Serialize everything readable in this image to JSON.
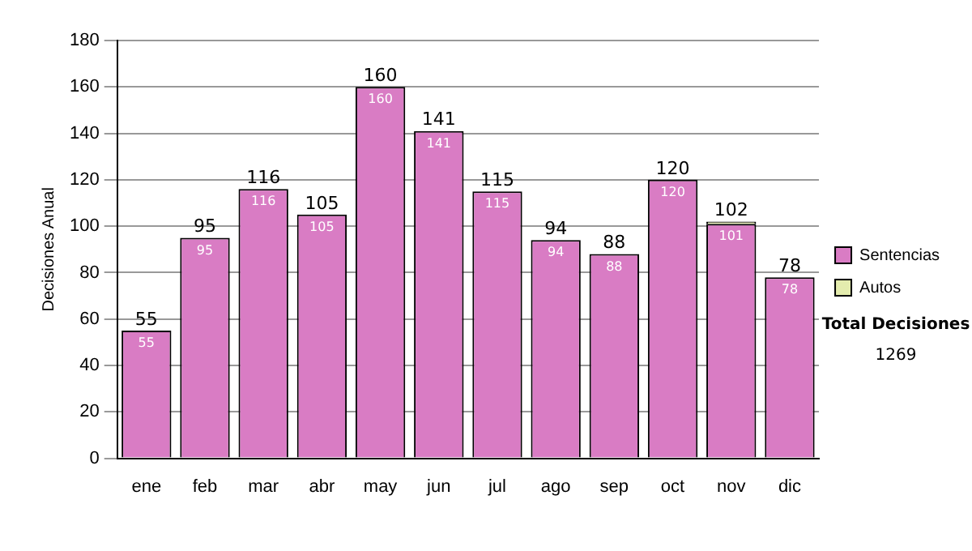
{
  "chart_data": {
    "type": "bar",
    "ylabel": "Decisiones Anual",
    "categories": [
      "ene",
      "feb",
      "mar",
      "abr",
      "may",
      "jun",
      "jul",
      "ago",
      "sep",
      "oct",
      "nov",
      "dic"
    ],
    "series": [
      {
        "name": "Sentencias",
        "color": "#d97cc4",
        "values": [
          55,
          95,
          116,
          105,
          160,
          141,
          115,
          94,
          88,
          120,
          101,
          78
        ],
        "value_labels": [
          "55",
          "95",
          "116",
          "105",
          "160",
          "141",
          "115",
          "94",
          "88",
          "120",
          "101",
          "78"
        ]
      },
      {
        "name": "Autos",
        "color": "#e4ecae",
        "values": [
          0,
          0,
          0,
          0,
          0,
          0,
          0,
          0,
          0,
          0,
          1,
          0
        ]
      }
    ],
    "stacked": true,
    "totals": [
      "55",
      "95",
      "116",
      "105",
      "160",
      "141",
      "115",
      "94",
      "88",
      "120",
      "102",
      "78"
    ],
    "ylim": [
      0,
      180
    ],
    "yticks": [
      0,
      20,
      40,
      60,
      80,
      100,
      120,
      140,
      160,
      180
    ],
    "grid": "y",
    "legend": "right",
    "annotations": [
      "Total Decisiones",
      "1269"
    ]
  }
}
